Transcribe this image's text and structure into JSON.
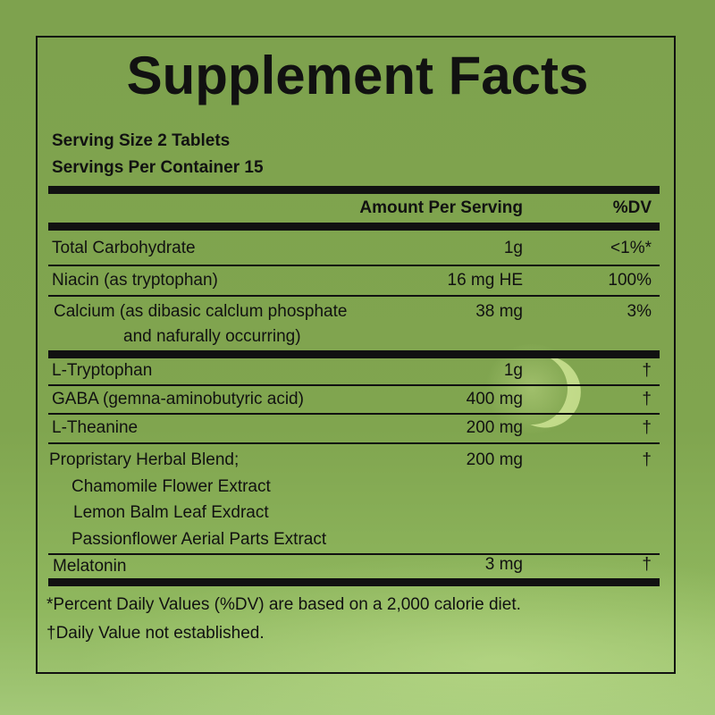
{
  "title": "Supplement Facts",
  "serving_size": "Serving Size 2 Tablets",
  "servings_per_container": "Servings Per Container 15",
  "header": {
    "amount": "Amount Per Serving",
    "dv": "%DV"
  },
  "rows": [
    {
      "name": "Total Carbohydrate",
      "amount": "1g",
      "dv": "<1%*"
    },
    {
      "name": "Niacin (as tryptophan)",
      "amount": "16 mg HE",
      "dv": "100%"
    },
    {
      "name": "Calcium (as dibasic calclum phosphate",
      "name2": "and nafurally occurring)",
      "amount": "38 mg",
      "dv": "3%"
    },
    {
      "name": "L-Tryptophan",
      "amount": "1g",
      "dv": "†"
    },
    {
      "name": "GABA (gemna-aminobutyric acid)",
      "amount": "400 mg",
      "dv": "†"
    },
    {
      "name": "L-Theanine",
      "amount": "200 mg",
      "dv": "†"
    },
    {
      "name": "Propristary Herbal Blend;",
      "amount": "200 mg",
      "dv": "†",
      "sub": [
        "Chamomile Flower Extract",
        "Lemon Balm Leaf Exdract",
        "Passionflower Aerial Parts Extract"
      ]
    },
    {
      "name": "Melatonin",
      "amount": "3 mg",
      "dv": "†"
    }
  ],
  "footnotes": [
    "*Percent Daily Values (%DV) are based on a 2,000 calorie diet.",
    "†Daily Value not established."
  ],
  "colors": {
    "background": "#7fa34f",
    "text": "#111111"
  }
}
